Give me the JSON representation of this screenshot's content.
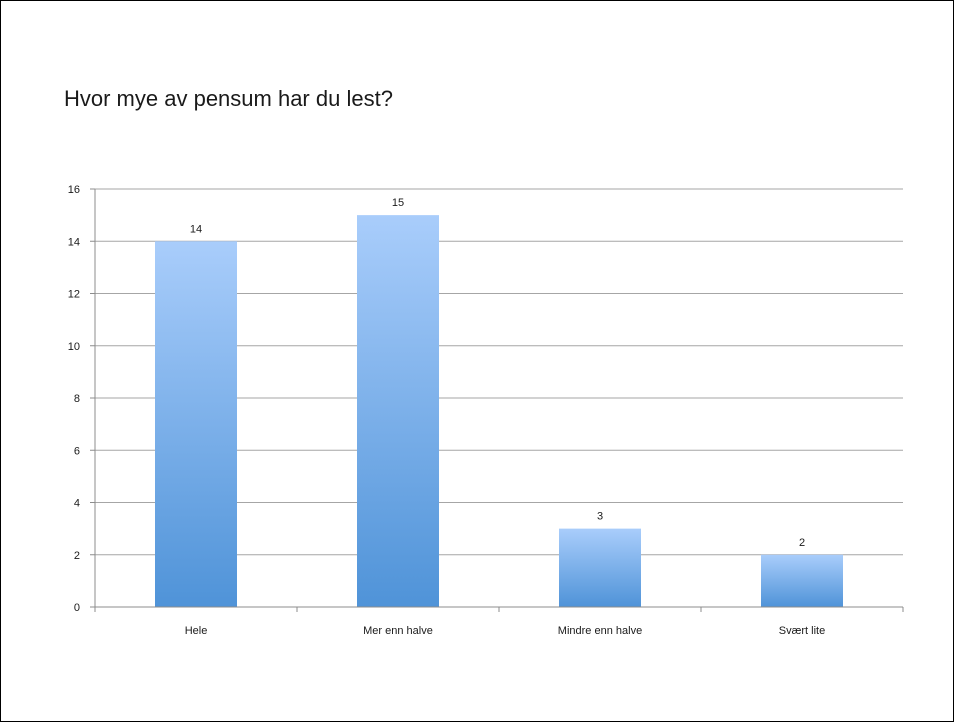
{
  "slide": {
    "title": "Hvor mye av pensum har du lest?"
  },
  "colors": {
    "bar_top": "#a9cdfb",
    "bar_bottom": "#4f93d8",
    "grid": "#a6a6a6",
    "axis": "#8c8c8c"
  },
  "chart_data": {
    "type": "bar",
    "categories": [
      "Hele",
      "Mer enn halve",
      "Mindre enn halve",
      "Svært lite"
    ],
    "values": [
      14,
      15,
      3,
      2
    ],
    "data_labels": [
      "14",
      "15",
      "3",
      "2"
    ],
    "title": "",
    "xlabel": "",
    "ylabel": "",
    "ylim": [
      0,
      16
    ],
    "yticks": [
      0,
      2,
      4,
      6,
      8,
      10,
      12,
      14,
      16
    ],
    "grid": true,
    "legend": "none"
  }
}
